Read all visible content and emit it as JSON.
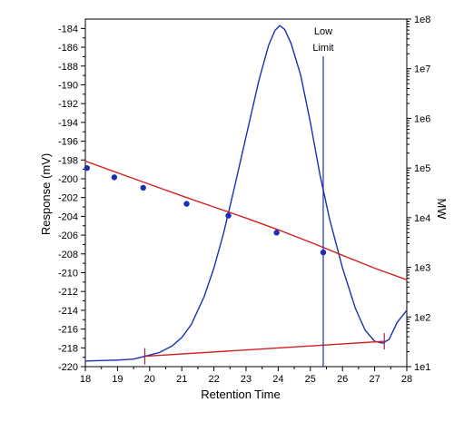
{
  "chart_data": {
    "type": "line",
    "xlabel": "Retention Time",
    "ylabel": "Response (mV)",
    "y2label": "MW",
    "xlim": [
      18,
      28
    ],
    "ylim": [
      -220,
      -183
    ],
    "y2lim_log10": [
      1,
      8
    ],
    "x_ticks": [
      "18",
      "19",
      "20",
      "21",
      "22",
      "23",
      "24",
      "25",
      "26",
      "27",
      "28"
    ],
    "y_ticks": [
      "-220",
      "-218",
      "-216",
      "-214",
      "-212",
      "-210",
      "-208",
      "-206",
      "-204",
      "-202",
      "-200",
      "-198",
      "-196",
      "-194",
      "-192",
      "-190",
      "-188",
      "-186",
      "-184"
    ],
    "y2_ticks": [
      "1e1",
      "1e2",
      "1e3",
      "1e4",
      "1e5",
      "1e6",
      "1e7",
      "1e8"
    ],
    "grid": false,
    "annotations": [
      {
        "text": "Low",
        "x": 25.4
      },
      {
        "text": "Limit",
        "x": 25.4
      }
    ],
    "low_limit_x": 25.4,
    "series": [
      {
        "axis": "left",
        "style": "line",
        "color": "#1a2fb5",
        "x": [
          18.0,
          19.0,
          19.5,
          19.85,
          20.3,
          20.7,
          21.0,
          21.3,
          21.7,
          22.0,
          22.3,
          22.6,
          23.0,
          23.4,
          23.7,
          23.9,
          24.05,
          24.2,
          24.4,
          24.7,
          25.0,
          25.3,
          25.6,
          26.0,
          26.4,
          26.7,
          27.0,
          27.25,
          27.45,
          27.7,
          28.0
        ],
        "y": [
          -219.4,
          -219.3,
          -219.2,
          -218.9,
          -218.5,
          -217.8,
          -216.9,
          -215.5,
          -212.5,
          -209.5,
          -205.8,
          -201.5,
          -195.5,
          -189.5,
          -185.8,
          -184.2,
          -183.7,
          -184.1,
          -185.6,
          -189.0,
          -194.0,
          -199.6,
          -204.3,
          -209.5,
          -213.8,
          -216.1,
          -217.3,
          -217.5,
          -217.1,
          -215.3,
          -214.0
        ]
      },
      {
        "axis": "left",
        "style": "line",
        "color": "#d42020",
        "x": [
          19.85,
          27.3
        ],
        "y": [
          -218.9,
          -217.3
        ]
      },
      {
        "axis": "right",
        "style": "line",
        "color": "#d42020",
        "x": [
          18.0,
          19.0,
          20.0,
          21.0,
          22.0,
          23.0,
          24.0,
          25.0,
          26.0,
          27.0,
          28.0
        ],
        "y": [
          138000,
          80000,
          47000,
          27500,
          16400,
          9800,
          5700,
          3200,
          1750,
          960,
          560
        ]
      },
      {
        "axis": "right",
        "style": "points",
        "color": "#1a2fb5",
        "x": [
          18.05,
          18.9,
          19.8,
          21.15,
          22.45,
          23.95,
          25.4
        ],
        "y": [
          100000,
          65000,
          40000,
          19000,
          11000,
          5000,
          2000
        ]
      }
    ],
    "baseline_markers": [
      {
        "x": 19.85,
        "y": -218.9
      },
      {
        "x": 27.3,
        "y": -217.3
      }
    ]
  }
}
